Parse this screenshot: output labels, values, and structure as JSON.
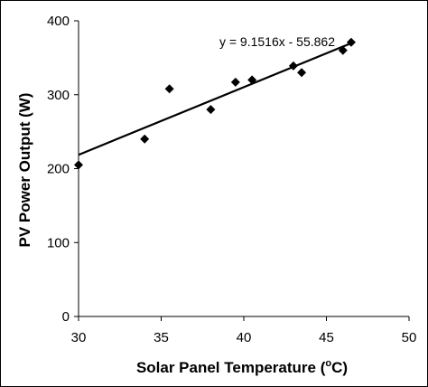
{
  "chart_data": {
    "type": "scatter",
    "x": [
      30.0,
      34.0,
      35.5,
      38.0,
      39.5,
      40.5,
      43.0,
      43.5,
      46.0,
      46.5
    ],
    "y": [
      205,
      240,
      308,
      280,
      317,
      320,
      339,
      330,
      360,
      371
    ],
    "trendline": {
      "slope": 9.1516,
      "intercept": -55.862,
      "x_range": [
        30,
        46.5
      ],
      "label": "y = 9.1516x - 55.862"
    },
    "xlabel_main": "Solar Panel Temperature (",
    "xlabel_sup": "o",
    "xlabel_end": "C)",
    "ylabel": "PV Power Output (W)",
    "xlim": [
      30,
      50
    ],
    "ylim": [
      0,
      400
    ],
    "xticks": [
      "30",
      "35",
      "40",
      "45",
      "50"
    ],
    "yticks": [
      "0",
      "100",
      "200",
      "300",
      "400"
    ],
    "grid": false,
    "legend": "none",
    "marker_color": "#000000",
    "line_color": "#000000"
  }
}
